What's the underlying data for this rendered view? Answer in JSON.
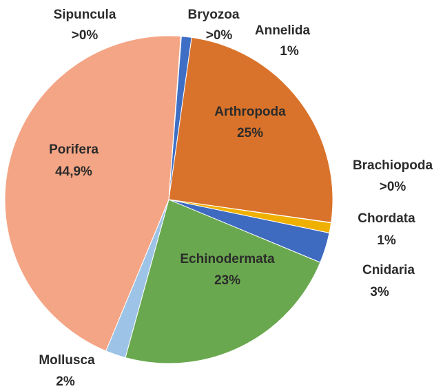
{
  "chart_data": {
    "type": "pie",
    "categories": [
      "Bryozoa",
      "Annelida",
      "Arthropoda",
      "Brachiopoda",
      "Chordata",
      "Cnidaria",
      "Echinodermata",
      "Mollusca",
      "Porifera",
      "Sipuncula"
    ],
    "values": [
      0.03,
      1,
      25,
      0.03,
      1,
      3,
      23,
      2,
      44.9,
      0.03
    ],
    "value_labels": [
      ">0%",
      "1%",
      "25%",
      ">0%",
      "1%",
      "3%",
      "23%",
      "2%",
      "44,9%",
      ">0%"
    ],
    "colors": [
      "#a5a5a5",
      "#3f6fc5",
      "#d9732b",
      "#a5a5a5",
      "#f0b000",
      "#3e6ac0",
      "#6aa84f",
      "#9dc3e6",
      "#f4a585",
      "#f5c000"
    ]
  }
}
